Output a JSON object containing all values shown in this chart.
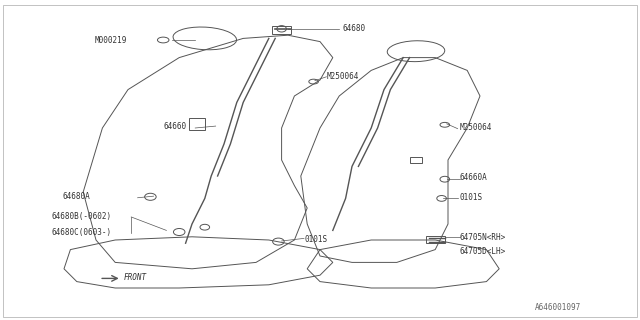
{
  "bg_color": "#ffffff",
  "line_color": "#555555",
  "text_color": "#333333",
  "fig_width": 6.4,
  "fig_height": 3.2,
  "dpi": 100,
  "diagram_id": "A646001097",
  "label_texts": {
    "M000219": "M000219",
    "64680": "64680",
    "M250064_top": "M250064",
    "64660": "64660",
    "M250064_right": "M250064",
    "64660A": "64660A",
    "0101S_right": "0101S",
    "64680A": "64680A",
    "64680B": "64680B(-0602)",
    "64680C": "64680C(0603-)",
    "0101S_bottom": "0101S",
    "64705N": "64705N<RH>",
    "64705D": "64705D<LH>",
    "FRONT": "FRONT",
    "diagram_code": "A646001097"
  }
}
